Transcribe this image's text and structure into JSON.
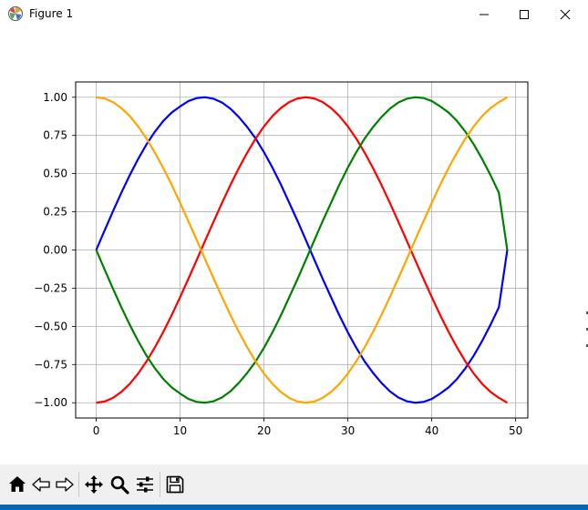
{
  "window": {
    "title": "Figure 1",
    "controls": {
      "minimize_icon": "minimize-icon",
      "maximize_icon": "maximize-icon",
      "close_icon": "close-icon"
    }
  },
  "toolbar": {
    "buttons": [
      {
        "name": "home-button",
        "icon": "home-icon"
      },
      {
        "name": "back-button",
        "icon": "arrow-left-icon"
      },
      {
        "name": "forward-button",
        "icon": "arrow-right-icon"
      },
      {
        "name": "pan-button",
        "icon": "move-icon"
      },
      {
        "name": "zoom-button",
        "icon": "magnifier-icon"
      },
      {
        "name": "configure-subplots-button",
        "icon": "sliders-icon"
      },
      {
        "name": "save-button",
        "icon": "floppy-disk-icon"
      }
    ]
  },
  "chart_data": {
    "type": "line",
    "title": "",
    "xlabel": "",
    "ylabel": "",
    "xlim": [
      -2.45,
      51.45
    ],
    "ylim": [
      -1.1,
      1.1
    ],
    "xticks": [
      0,
      10,
      20,
      30,
      40,
      50
    ],
    "xtick_labels": [
      "0",
      "10",
      "20",
      "30",
      "40",
      "50"
    ],
    "yticks": [
      1.0,
      0.75,
      0.5,
      0.25,
      0.0,
      -0.25,
      -0.5,
      -0.75,
      -1.0
    ],
    "ytick_labels": [
      "1.00",
      "0.75",
      "0.50",
      "0.25",
      "0.00",
      "−0.25",
      "−0.50",
      "−0.75",
      "−1.00"
    ],
    "grid": true,
    "x": [
      0,
      1,
      2,
      3,
      4,
      5,
      6,
      7,
      8,
      9,
      10,
      11,
      12,
      13,
      14,
      15,
      16,
      17,
      18,
      19,
      20,
      21,
      22,
      23,
      24,
      25,
      26,
      27,
      28,
      29,
      30,
      31,
      32,
      33,
      34,
      35,
      36,
      37,
      38,
      39,
      40,
      41,
      42,
      43,
      44,
      45,
      46,
      47,
      48,
      49
    ],
    "series": [
      {
        "color": "#0000ff",
        "values": [
          0.0,
          0.128,
          0.254,
          0.375,
          0.49,
          0.596,
          0.692,
          0.775,
          0.845,
          0.9,
          0.94,
          0.975,
          0.995,
          1.0,
          0.99,
          0.965,
          0.925,
          0.87,
          0.805,
          0.73,
          0.64,
          0.54,
          0.43,
          0.31,
          0.19,
          0.064,
          -0.064,
          -0.19,
          -0.31,
          -0.43,
          -0.54,
          -0.64,
          -0.73,
          -0.805,
          -0.87,
          -0.925,
          -0.965,
          -0.99,
          -1.0,
          -0.995,
          -0.975,
          -0.94,
          -0.9,
          -0.845,
          -0.775,
          -0.692,
          -0.596,
          -0.49,
          -0.375,
          0.0
        ]
      },
      {
        "color": "#ff0000",
        "values": [
          -1.0,
          -0.992,
          -0.968,
          -0.929,
          -0.876,
          -0.809,
          -0.729,
          -0.637,
          -0.536,
          -0.426,
          -0.309,
          -0.187,
          -0.063,
          0.063,
          0.187,
          0.309,
          0.426,
          0.536,
          0.637,
          0.729,
          0.809,
          0.876,
          0.929,
          0.968,
          0.992,
          1.0,
          0.992,
          0.968,
          0.929,
          0.876,
          0.809,
          0.729,
          0.637,
          0.536,
          0.426,
          0.309,
          0.187,
          0.063,
          -0.063,
          -0.187,
          -0.309,
          -0.426,
          -0.536,
          -0.637,
          -0.729,
          -0.809,
          -0.876,
          -0.929,
          -0.968,
          -1.0
        ]
      },
      {
        "color": "#008000",
        "values": [
          0.0,
          -0.128,
          -0.254,
          -0.375,
          -0.49,
          -0.596,
          -0.692,
          -0.775,
          -0.845,
          -0.9,
          -0.94,
          -0.975,
          -0.995,
          -1.0,
          -0.99,
          -0.965,
          -0.925,
          -0.87,
          -0.805,
          -0.73,
          -0.64,
          -0.54,
          -0.43,
          -0.31,
          -0.19,
          -0.064,
          0.064,
          0.19,
          0.31,
          0.43,
          0.54,
          0.64,
          0.73,
          0.805,
          0.87,
          0.925,
          0.965,
          0.99,
          1.0,
          0.995,
          0.975,
          0.94,
          0.9,
          0.845,
          0.775,
          0.692,
          0.596,
          0.49,
          0.375,
          0.0
        ]
      },
      {
        "color": "#ffa500",
        "values": [
          1.0,
          0.992,
          0.968,
          0.929,
          0.876,
          0.809,
          0.729,
          0.637,
          0.536,
          0.426,
          0.309,
          0.187,
          0.063,
          -0.063,
          -0.187,
          -0.309,
          -0.426,
          -0.536,
          -0.637,
          -0.729,
          -0.809,
          -0.876,
          -0.929,
          -0.968,
          -0.992,
          -1.0,
          -0.992,
          -0.968,
          -0.929,
          -0.876,
          -0.809,
          -0.729,
          -0.637,
          -0.536,
          -0.426,
          -0.309,
          -0.187,
          -0.063,
          0.063,
          0.187,
          0.309,
          0.426,
          0.536,
          0.637,
          0.729,
          0.809,
          0.876,
          0.929,
          0.968,
          1.0
        ]
      }
    ]
  }
}
